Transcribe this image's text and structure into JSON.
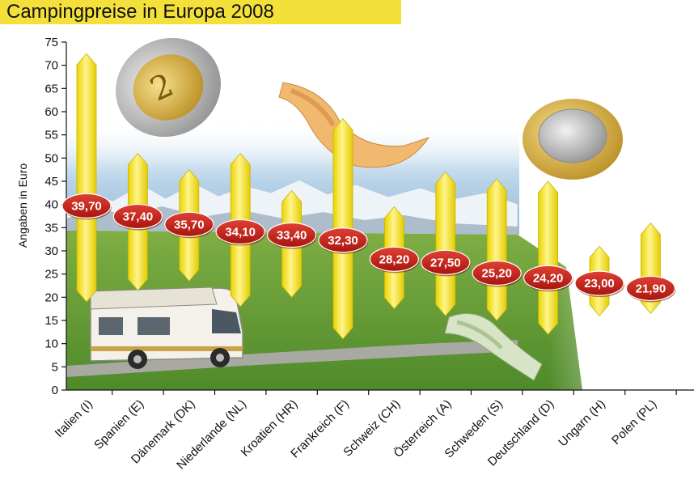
{
  "title": "Campingpreise in Europa 2008",
  "colors": {
    "title_bg": "#f3e03a",
    "bar_fill": "#f5e62a",
    "bar_stroke": "#c9b400",
    "label_oval": "#c8231c",
    "label_text": "#ffffff",
    "grass": "#6fa23a",
    "sky": "#9cc0dd"
  },
  "illustration": {
    "elements": [
      "two-euro-coin",
      "fifty-euro-banknote",
      "one-euro-coin",
      "hundred-euro-banknote",
      "motorhome",
      "mountains",
      "meadow",
      "road"
    ]
  },
  "chart_data": {
    "type": "range-bar",
    "title": "Campingpreise in Europa 2008",
    "xlabel": "",
    "ylabel": "Angaben in Euro",
    "ylim": [
      0,
      75
    ],
    "yticks": [
      "0",
      "5",
      "10",
      "15",
      "20",
      "25",
      "30",
      "35",
      "40",
      "45",
      "50",
      "55",
      "60",
      "65",
      "70",
      "75"
    ],
    "grid": false,
    "categories": [
      "Italien (I)",
      "Spanien (E)",
      "Dänemark (DK)",
      "Niederlande (NL)",
      "Kroatien (HR)",
      "Frankreich (F)",
      "Schweiz (CH)",
      "Österreich (A)",
      "Schweden (S)",
      "Deutschland (D)",
      "Ungarn (H)",
      "Polen (PL)"
    ],
    "values": [
      39.7,
      37.4,
      35.7,
      34.1,
      33.4,
      32.3,
      28.2,
      27.5,
      25.2,
      24.2,
      23.0,
      21.9
    ],
    "value_labels": [
      "39,70",
      "37,40",
      "35,70",
      "34,10",
      "33,40",
      "32,30",
      "28,20",
      "27,50",
      "25,20",
      "24,20",
      "23,00",
      "21,90"
    ],
    "ranges": [
      [
        19,
        72.5
      ],
      [
        21.5,
        51
      ],
      [
        23.5,
        47.5
      ],
      [
        18,
        51
      ],
      [
        20,
        43
      ],
      [
        11,
        58.5
      ],
      [
        17.5,
        39.5
      ],
      [
        16,
        47
      ],
      [
        15,
        45.5
      ],
      [
        12,
        45
      ],
      [
        16,
        31
      ],
      [
        16.5,
        36
      ]
    ]
  }
}
